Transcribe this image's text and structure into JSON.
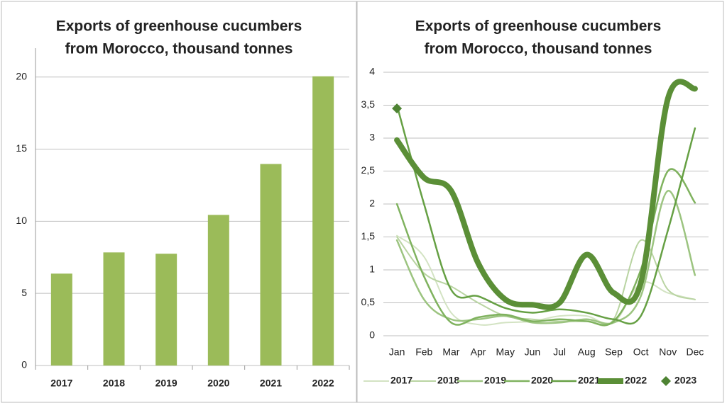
{
  "chart_data": [
    {
      "type": "bar",
      "title": [
        "Exports of greenhouse cucumbers",
        "from Morocco, thousand tonnes"
      ],
      "categories": [
        "2017",
        "2018",
        "2019",
        "2020",
        "2021",
        "2022"
      ],
      "values": [
        6.37,
        7.84,
        7.75,
        10.44,
        13.97,
        20.05
      ],
      "color": "#9bbb59",
      "ylim": [
        0,
        22
      ],
      "yticks": [
        0,
        5,
        10,
        15,
        20
      ],
      "grid": true
    },
    {
      "type": "line",
      "title": [
        "Exports of greenhouse cucumbers",
        "from Morocco, thousand tonnes"
      ],
      "categories": [
        "Jan",
        "Feb",
        "Mar",
        "Apr",
        "May",
        "Jun",
        "Jul",
        "Aug",
        "Sep",
        "Oct",
        "Nov",
        "Dec"
      ],
      "series": [
        {
          "name": "2017",
          "color": "#d3e3c3",
          "width": 2,
          "values": [
            1.52,
            1.2,
            0.35,
            0.17,
            0.2,
            0.22,
            0.3,
            0.3,
            0.2,
            0.8,
            0.65,
            0.55
          ]
        },
        {
          "name": "2018",
          "color": "#b9d4a2",
          "width": 2,
          "values": [
            1.5,
            0.95,
            0.75,
            0.5,
            0.3,
            0.25,
            0.22,
            0.22,
            0.25,
            1.45,
            0.7,
            0.55
          ]
        },
        {
          "name": "2019",
          "color": "#9cc480",
          "width": 2.5,
          "values": [
            1.45,
            0.55,
            0.25,
            0.25,
            0.3,
            0.2,
            0.2,
            0.25,
            0.2,
            0.6,
            2.2,
            0.92
          ]
        },
        {
          "name": "2020",
          "color": "#7fb25e",
          "width": 2.5,
          "values": [
            2.0,
            0.9,
            0.2,
            0.28,
            0.32,
            0.22,
            0.25,
            0.22,
            0.22,
            1.0,
            2.5,
            2.02
          ]
        },
        {
          "name": "2021",
          "color": "#66a044",
          "width": 2.5,
          "values": [
            3.5,
            2.0,
            0.7,
            0.6,
            0.42,
            0.35,
            0.4,
            0.35,
            0.25,
            0.3,
            1.6,
            3.15
          ]
        },
        {
          "name": "2022",
          "color": "#5b8f37",
          "width": 8,
          "values": [
            2.97,
            2.4,
            2.2,
            1.1,
            0.55,
            0.47,
            0.5,
            1.23,
            0.65,
            0.8,
            3.6,
            3.75
          ]
        },
        {
          "name": "2023",
          "color": "#4e8333",
          "width": 2,
          "marker": "diamond",
          "values": [
            3.45,
            null,
            null,
            null,
            null,
            null,
            null,
            null,
            null,
            null,
            null,
            null
          ]
        }
      ],
      "ylim": [
        0,
        4
      ],
      "yticks": [
        0,
        {
          "value": 0.5,
          "label": "0,5"
        },
        1,
        {
          "value": 1.5,
          "label": "1,5"
        },
        2,
        {
          "value": 2.5,
          "label": "2,5"
        },
        3,
        {
          "value": 3.5,
          "label": "3,5"
        },
        4
      ],
      "grid": true,
      "legend": "bottom"
    }
  ]
}
